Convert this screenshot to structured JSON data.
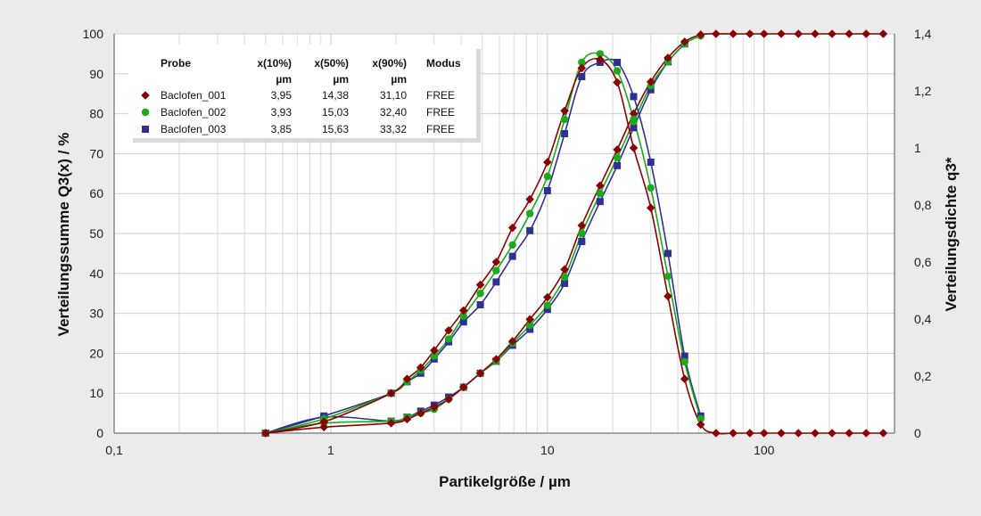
{
  "chart_data": {
    "type": "line",
    "title": "",
    "xlabel": "Partikelgröße / µm",
    "ylabel_left": "Verteilungssumme Q3(x) / %",
    "ylabel_right": "Verteilungsdichte q3*",
    "x_scale": "log",
    "xlim": [
      0.1,
      400
    ],
    "ylim_left": [
      0,
      100
    ],
    "ylim_right": [
      0,
      1.4
    ],
    "x_ticks": [
      "0,1",
      "1",
      "10",
      "100"
    ],
    "y_ticks_left": [
      "0",
      "10",
      "20",
      "30",
      "40",
      "50",
      "60",
      "70",
      "80",
      "90",
      "100"
    ],
    "y_ticks_right": [
      "0",
      "0,2",
      "0,4",
      "0,6",
      "0,8",
      "1",
      "1,2",
      "1,4"
    ],
    "grid": true,
    "legend": {
      "placement": "top-left",
      "headers": [
        "Probe",
        "x(10%)",
        "x(50%)",
        "x(90%)",
        "Modus"
      ],
      "units": [
        "µm",
        "µm",
        "µm"
      ],
      "rows": [
        {
          "name": "Baclofen_001",
          "x10": "3,95",
          "x50": "14,38",
          "x90": "31,10",
          "modus": "FREE",
          "color": "#8b0000",
          "marker": "diamond"
        },
        {
          "name": "Baclofen_002",
          "x10": "3,93",
          "x50": "15,03",
          "x90": "32,40",
          "modus": "FREE",
          "color": "#1aaa1a",
          "marker": "circle"
        },
        {
          "name": "Baclofen_003",
          "x10": "3,85",
          "x50": "15,63",
          "x90": "33,32",
          "modus": "FREE",
          "color": "#2e3192",
          "marker": "square"
        }
      ]
    },
    "series": [
      {
        "name": "Baclofen_001",
        "kind": "cumulative",
        "axis": "left",
        "color": "#8b0000",
        "marker": "diamond",
        "x": [
          0.5,
          0.93,
          1.9,
          2.25,
          2.6,
          3.0,
          3.5,
          4.1,
          4.9,
          5.8,
          6.9,
          8.3,
          10.0,
          12.0,
          14.4,
          17.5,
          21.0,
          25.0,
          30.0,
          36.0,
          43.0,
          51.0,
          60.0,
          72.0,
          86.0,
          100.0,
          120.0,
          144.0,
          172.0,
          206.0,
          247.0,
          296.0,
          355.0
        ],
        "y": [
          0,
          1.5,
          2.5,
          3.5,
          5,
          6.5,
          8.5,
          11.5,
          15,
          18.5,
          23,
          28.5,
          34,
          41,
          52,
          62,
          71,
          80,
          88,
          94,
          98,
          99.8,
          100,
          100,
          100,
          100,
          100,
          100,
          100,
          100,
          100,
          100,
          100
        ]
      },
      {
        "name": "Baclofen_002",
        "kind": "cumulative",
        "axis": "left",
        "color": "#1aaa1a",
        "marker": "circle",
        "x": [
          0.5,
          0.93,
          1.9,
          2.25,
          2.6,
          3.0,
          3.5,
          4.1,
          4.9,
          5.8,
          6.9,
          8.3,
          10.0,
          12.0,
          14.4,
          17.5,
          21.0,
          25.0,
          30.0,
          36.0,
          43.0,
          51.0
        ],
        "y": [
          0,
          2.5,
          3,
          4,
          5,
          6,
          8.5,
          11.5,
          15,
          18,
          22.5,
          27,
          32,
          39,
          50,
          60,
          69,
          78,
          87,
          93,
          97.5,
          99.5
        ]
      },
      {
        "name": "Baclofen_003",
        "kind": "cumulative",
        "axis": "left",
        "color": "#2e3192",
        "marker": "square",
        "x": [
          0.5,
          0.93,
          1.9,
          2.25,
          2.6,
          3.0,
          3.5,
          4.1,
          4.9,
          5.8,
          6.9,
          8.3,
          10.0,
          12.0,
          14.4,
          17.5,
          21.0,
          25.0,
          30.0,
          36.0,
          43.0
        ],
        "y": [
          0,
          4,
          3,
          4,
          5.5,
          7,
          9,
          11.5,
          15,
          18,
          22,
          26,
          31,
          37.5,
          48,
          58,
          67,
          76.5,
          86,
          93,
          97.5
        ]
      },
      {
        "name": "Baclofen_001",
        "kind": "density",
        "axis": "right",
        "color": "#8b0000",
        "marker": "diamond",
        "x": [
          0.5,
          0.93,
          1.9,
          2.25,
          2.6,
          3.0,
          3.5,
          4.1,
          4.9,
          5.8,
          6.9,
          8.3,
          10.0,
          12.0,
          14.4,
          17.5,
          21.0,
          25.0,
          30.0,
          36.0,
          43.0,
          51.0,
          60.0,
          72.0,
          86.0,
          100.0,
          120.0,
          144.0,
          172.0,
          206.0,
          247.0,
          296.0,
          355.0
        ],
        "y": [
          0,
          0.04,
          0.14,
          0.19,
          0.23,
          0.29,
          0.36,
          0.43,
          0.52,
          0.6,
          0.72,
          0.82,
          0.95,
          1.13,
          1.28,
          1.31,
          1.23,
          1.0,
          0.79,
          0.48,
          0.19,
          0.03,
          0,
          0,
          0,
          0,
          0,
          0,
          0,
          0,
          0,
          0,
          0
        ]
      },
      {
        "name": "Baclofen_002",
        "kind": "density",
        "axis": "right",
        "color": "#1aaa1a",
        "marker": "circle",
        "x": [
          0.5,
          0.93,
          1.9,
          2.25,
          2.6,
          3.0,
          3.5,
          4.1,
          4.9,
          5.8,
          6.9,
          8.3,
          10.0,
          12.0,
          14.4,
          17.5,
          21.0,
          25.0,
          30.0,
          36.0,
          43.0,
          51.0
        ],
        "y": [
          0,
          0.05,
          0.14,
          0.18,
          0.22,
          0.27,
          0.33,
          0.41,
          0.49,
          0.57,
          0.66,
          0.77,
          0.9,
          1.1,
          1.3,
          1.33,
          1.27,
          1.1,
          0.86,
          0.55,
          0.25,
          0.05
        ]
      },
      {
        "name": "Baclofen_003",
        "kind": "density",
        "axis": "right",
        "color": "#2e3192",
        "marker": "square",
        "x": [
          0.5,
          0.93,
          1.9,
          2.25,
          2.6,
          3.0,
          3.5,
          4.1,
          4.9,
          5.8,
          6.9,
          8.3,
          10.0,
          12.0,
          14.4,
          17.5,
          21.0,
          25.0,
          30.0,
          36.0,
          43.0,
          51.0
        ],
        "y": [
          0,
          0.06,
          0.14,
          0.18,
          0.21,
          0.26,
          0.32,
          0.39,
          0.45,
          0.53,
          0.62,
          0.71,
          0.85,
          1.05,
          1.25,
          1.3,
          1.3,
          1.18,
          0.95,
          0.63,
          0.27,
          0.06
        ]
      }
    ]
  }
}
